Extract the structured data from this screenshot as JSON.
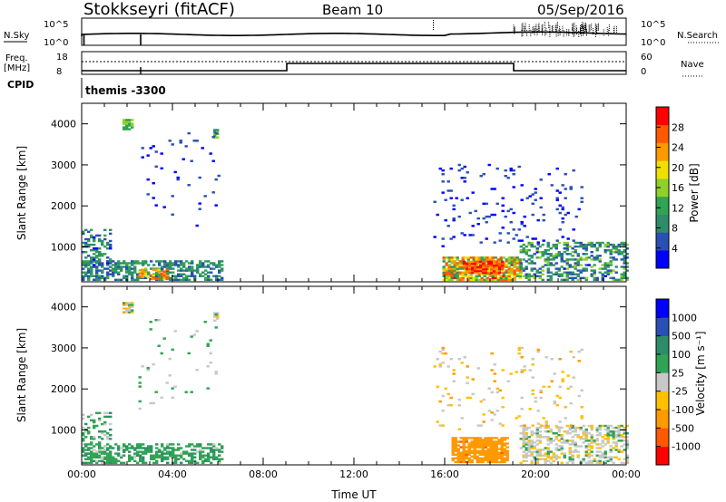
{
  "header": {
    "station": "Stokkseyri (fitACF)",
    "beam": "Beam 10",
    "date": "05/Sep/2016"
  },
  "panels": {
    "nsky": {
      "label": "N.Sky",
      "tick_top": "10^5",
      "tick_bottom": "10^0",
      "right_label": "N.Search",
      "right_tick_top": "10^5",
      "right_tick_bottom": "10^0"
    },
    "freq": {
      "label_line1": "Freq.",
      "label_line2": "[MHz]",
      "tick_top": "18",
      "tick_bottom": "8",
      "right_label": "Nave",
      "right_tick_top": "60",
      "right_tick_bottom": "0"
    },
    "cpid": {
      "label": "CPID",
      "program": "themis -3300"
    }
  },
  "colors": {
    "power": [
      "#0000ff",
      "#2a4fb5",
      "#2f8c6a",
      "#31a354",
      "#8fd12a",
      "#f0e000",
      "#ff9900",
      "#ff5a00",
      "#ff0000"
    ],
    "velocity": [
      "#ff0000",
      "#ff5a00",
      "#ff9900",
      "#ffc000",
      "#c8c8c8",
      "#31a354",
      "#2f8c6a",
      "#2a4fb5",
      "#0000ff"
    ]
  },
  "chart_data": [
    {
      "type": "heatmap",
      "name": "power",
      "ylabel": "Slant Range [km]",
      "colorbar_label": "Power [dB]",
      "colorbar_ticks": [
        "28",
        "24",
        "20",
        "16",
        "12",
        "8",
        "4"
      ],
      "ylim": [
        150,
        4500
      ],
      "yticks": [
        "1000",
        "2000",
        "3000",
        "4000"
      ],
      "xlim": [
        0,
        24
      ],
      "xticks": [
        "00:00",
        "04:00",
        "08:00",
        "12:00",
        "16:00",
        "20:00",
        "00:00"
      ],
      "grid": false,
      "clusters": [
        {
          "t0": 0.0,
          "t1": 6.2,
          "r0": 180,
          "r1": 650,
          "level": [
            0.15,
            0.45
          ],
          "density": 0.55
        },
        {
          "t0": 0.0,
          "t1": 1.3,
          "r0": 180,
          "r1": 1400,
          "level": [
            0.1,
            0.4
          ],
          "density": 0.35
        },
        {
          "t0": 1.8,
          "t1": 2.2,
          "r0": 3850,
          "r1": 4100,
          "level": [
            0.35,
            0.55
          ],
          "density": 0.8
        },
        {
          "t0": 5.8,
          "t1": 6.0,
          "r0": 3650,
          "r1": 3850,
          "level": [
            0.3,
            0.5
          ],
          "density": 0.7
        },
        {
          "t0": 2.5,
          "t1": 3.8,
          "r0": 200,
          "r1": 450,
          "level": [
            0.6,
            0.9
          ],
          "density": 0.5
        },
        {
          "t0": 15.9,
          "t1": 19.3,
          "r0": 180,
          "r1": 750,
          "level": [
            0.3,
            0.9
          ],
          "density": 0.8
        },
        {
          "t0": 16.8,
          "t1": 18.6,
          "r0": 350,
          "r1": 650,
          "level": [
            0.65,
            0.95
          ],
          "density": 0.85
        },
        {
          "t0": 19.3,
          "t1": 24.0,
          "r0": 180,
          "r1": 1100,
          "level": [
            0.1,
            0.5
          ],
          "density": 0.45
        },
        {
          "t0": 15.5,
          "t1": 22.0,
          "r0": 1000,
          "r1": 3000,
          "level": [
            0.05,
            0.2
          ],
          "density": 0.05
        },
        {
          "t0": 2.5,
          "t1": 6.0,
          "r0": 1500,
          "r1": 3800,
          "level": [
            0.05,
            0.2
          ],
          "density": 0.03
        }
      ]
    },
    {
      "type": "heatmap",
      "name": "velocity",
      "ylabel": "Slant Range [km]",
      "colorbar_label": "Velocity [m s⁻¹]",
      "colorbar_ticks": [
        "1000",
        "500",
        "100",
        "25",
        "-25",
        "-100",
        "-500",
        "-1000"
      ],
      "ylim": [
        150,
        4500
      ],
      "yticks": [
        "1000",
        "2000",
        "3000",
        "4000"
      ],
      "xlim": [
        0,
        24
      ],
      "xticks": [
        "00:00",
        "04:00",
        "08:00",
        "12:00",
        "16:00",
        "20:00",
        "00:00"
      ],
      "xlabel": "Time UT",
      "grid": false,
      "clusters": [
        {
          "t0": 0.0,
          "t1": 6.2,
          "r0": 180,
          "r1": 650,
          "level": [
            0.55,
            0.7
          ],
          "density": 0.5
        },
        {
          "t0": 0.0,
          "t1": 1.3,
          "r0": 180,
          "r1": 1400,
          "level": [
            0.5,
            0.7
          ],
          "density": 0.3
        },
        {
          "t0": 1.8,
          "t1": 2.2,
          "r0": 3850,
          "r1": 4100,
          "level": [
            0.25,
            0.65
          ],
          "density": 0.8
        },
        {
          "t0": 5.8,
          "t1": 6.0,
          "r0": 3650,
          "r1": 3850,
          "level": [
            0.25,
            0.65
          ],
          "density": 0.7
        },
        {
          "t0": 16.3,
          "t1": 18.8,
          "r0": 200,
          "r1": 800,
          "level": [
            0.22,
            0.3
          ],
          "density": 0.85
        },
        {
          "t0": 19.3,
          "t1": 24.0,
          "r0": 180,
          "r1": 1100,
          "level": [
            0.4,
            0.6
          ],
          "density": 0.45
        },
        {
          "t0": 15.5,
          "t1": 22.0,
          "r0": 1000,
          "r1": 3000,
          "level": [
            0.3,
            0.55
          ],
          "density": 0.05
        },
        {
          "t0": 2.5,
          "t1": 6.0,
          "r0": 1500,
          "r1": 3800,
          "level": [
            0.45,
            0.65
          ],
          "density": 0.03
        }
      ]
    }
  ]
}
